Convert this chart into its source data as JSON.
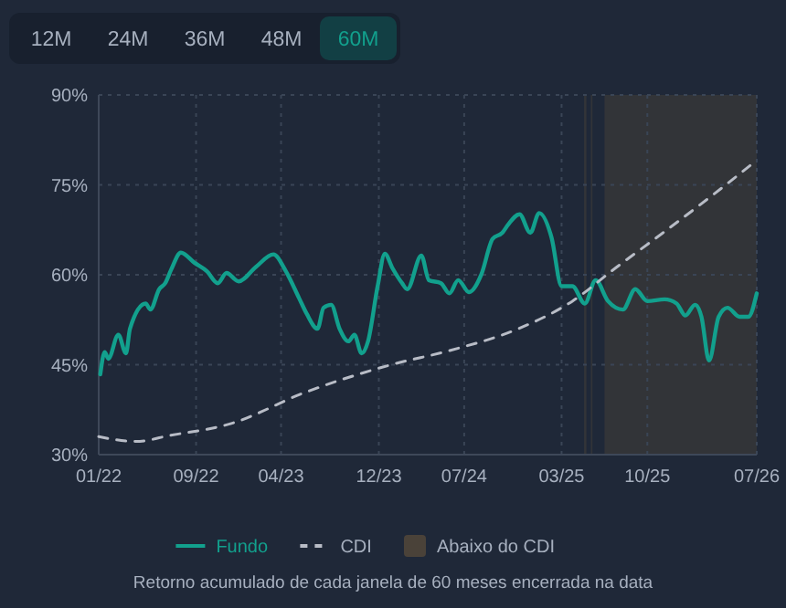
{
  "chart_data": {
    "type": "line",
    "xlim": [
      "2022-01-01",
      "2026-07-01"
    ],
    "xticks": [
      {
        "value": "2022-01-01",
        "label": "01/22"
      },
      {
        "value": "2022-09-01",
        "label": "09/22"
      },
      {
        "value": "2023-04-01",
        "label": "04/23"
      },
      {
        "value": "2023-12-01",
        "label": "12/23"
      },
      {
        "value": "2024-07-01",
        "label": "07/24"
      },
      {
        "value": "2025-03-01",
        "label": "03/25"
      },
      {
        "value": "2025-10-01",
        "label": "10/25"
      },
      {
        "value": "2026-07-01",
        "label": "07/26"
      }
    ],
    "ylim": [
      30,
      90
    ],
    "yticks": [
      {
        "value": 30,
        "label": "30%"
      },
      {
        "value": 45,
        "label": "45%"
      },
      {
        "value": 60,
        "label": "60%"
      },
      {
        "value": 75,
        "label": "75%"
      },
      {
        "value": 90,
        "label": "90%"
      }
    ],
    "grid": true,
    "legend": "bottom",
    "series": [
      {
        "name": "Fundo",
        "color": "#12a08d",
        "line_style": "solid",
        "x": [
          "2022-01-05",
          "2022-01-16",
          "2022-01-25",
          "2022-02-19",
          "2022-03-10",
          "2022-03-20",
          "2022-04-28",
          "2022-05-10",
          "2022-06-01",
          "2022-06-16",
          "2022-07-01",
          "2022-07-25",
          "2022-08-28",
          "2022-09-28",
          "2022-10-25",
          "2022-11-16",
          "2022-12-16",
          "2023-01-28",
          "2023-03-13",
          "2023-04-13",
          "2023-05-16",
          "2023-06-04",
          "2023-07-01",
          "2023-07-16",
          "2023-08-04",
          "2023-08-25",
          "2023-09-16",
          "2023-10-01",
          "2023-10-19",
          "2023-11-04",
          "2023-11-28",
          "2023-12-16",
          "2024-01-04",
          "2024-01-28",
          "2024-02-10",
          "2024-03-16",
          "2024-04-04",
          "2024-05-04",
          "2024-05-25",
          "2024-06-16",
          "2024-07-13",
          "2024-08-13",
          "2024-09-10",
          "2024-10-04",
          "2024-10-19",
          "2024-11-16",
          "2024-12-13",
          "2025-01-04",
          "2025-02-04",
          "2025-03-01",
          "2025-03-28",
          "2025-04-28",
          "2025-05-25",
          "2025-06-25",
          "2025-08-01",
          "2025-09-01",
          "2025-10-01",
          "2025-11-13",
          "2025-12-13",
          "2026-01-04",
          "2026-01-28",
          "2026-02-13",
          "2026-03-04",
          "2026-03-28",
          "2026-04-19",
          "2026-05-19",
          "2026-06-10",
          "2026-07-01"
        ],
        "values": [
          43.4,
          47.1,
          46,
          50,
          46.9,
          51,
          55.2,
          54.2,
          57.6,
          58.6,
          60.9,
          63.7,
          62,
          60.6,
          58.6,
          60.3,
          58.9,
          61.3,
          63.4,
          60.6,
          56.1,
          53.5,
          51,
          54.5,
          55,
          51,
          48.9,
          50,
          46.9,
          48.9,
          58.1,
          63.5,
          61.1,
          58.6,
          57.6,
          63.2,
          59.1,
          58.6,
          56.9,
          59.1,
          57.1,
          60.1,
          66,
          67,
          68.4,
          70.1,
          67,
          70.3,
          66.2,
          58.1,
          58.1,
          55.2,
          59.1,
          55.6,
          54.2,
          57.6,
          55.6,
          55.9,
          55.2,
          53.2,
          55,
          53,
          45.7,
          53,
          54.5,
          53,
          53,
          56.9
        ]
      },
      {
        "name": "CDI",
        "color": "#b8bcc6",
        "line_style": "dashed",
        "x": [
          "2022-01-01",
          "2022-04-04",
          "2022-06-28",
          "2022-11-28",
          "2023-05-28",
          "2024-01-01",
          "2024-05-28",
          "2024-11-13",
          "2025-03-28",
          "2025-07-13",
          "2025-11-13",
          "2026-03-13",
          "2026-07-01"
        ],
        "values": [
          33,
          32.2,
          33.2,
          35.2,
          40.3,
          45,
          47.4,
          51,
          55.6,
          61.1,
          67.2,
          73.3,
          79.1
        ]
      }
    ],
    "bands": [
      {
        "axis": "x",
        "from": "2025-04-26",
        "to": "2025-05-02",
        "label": "Abaixo do CDI",
        "color": "#4a4239"
      },
      {
        "axis": "x",
        "from": "2025-05-13",
        "to": "2025-05-17",
        "color": "#4a4239"
      },
      {
        "axis": "x",
        "from": "2025-06-16",
        "to": "2026-07-01",
        "color": "#4a4239"
      }
    ],
    "annotations": [
      "12M",
      "24M",
      "36M",
      "48M",
      "60M",
      "Retorno acumulado de cada janela de 60 meses encerrada na data"
    ]
  }
}
